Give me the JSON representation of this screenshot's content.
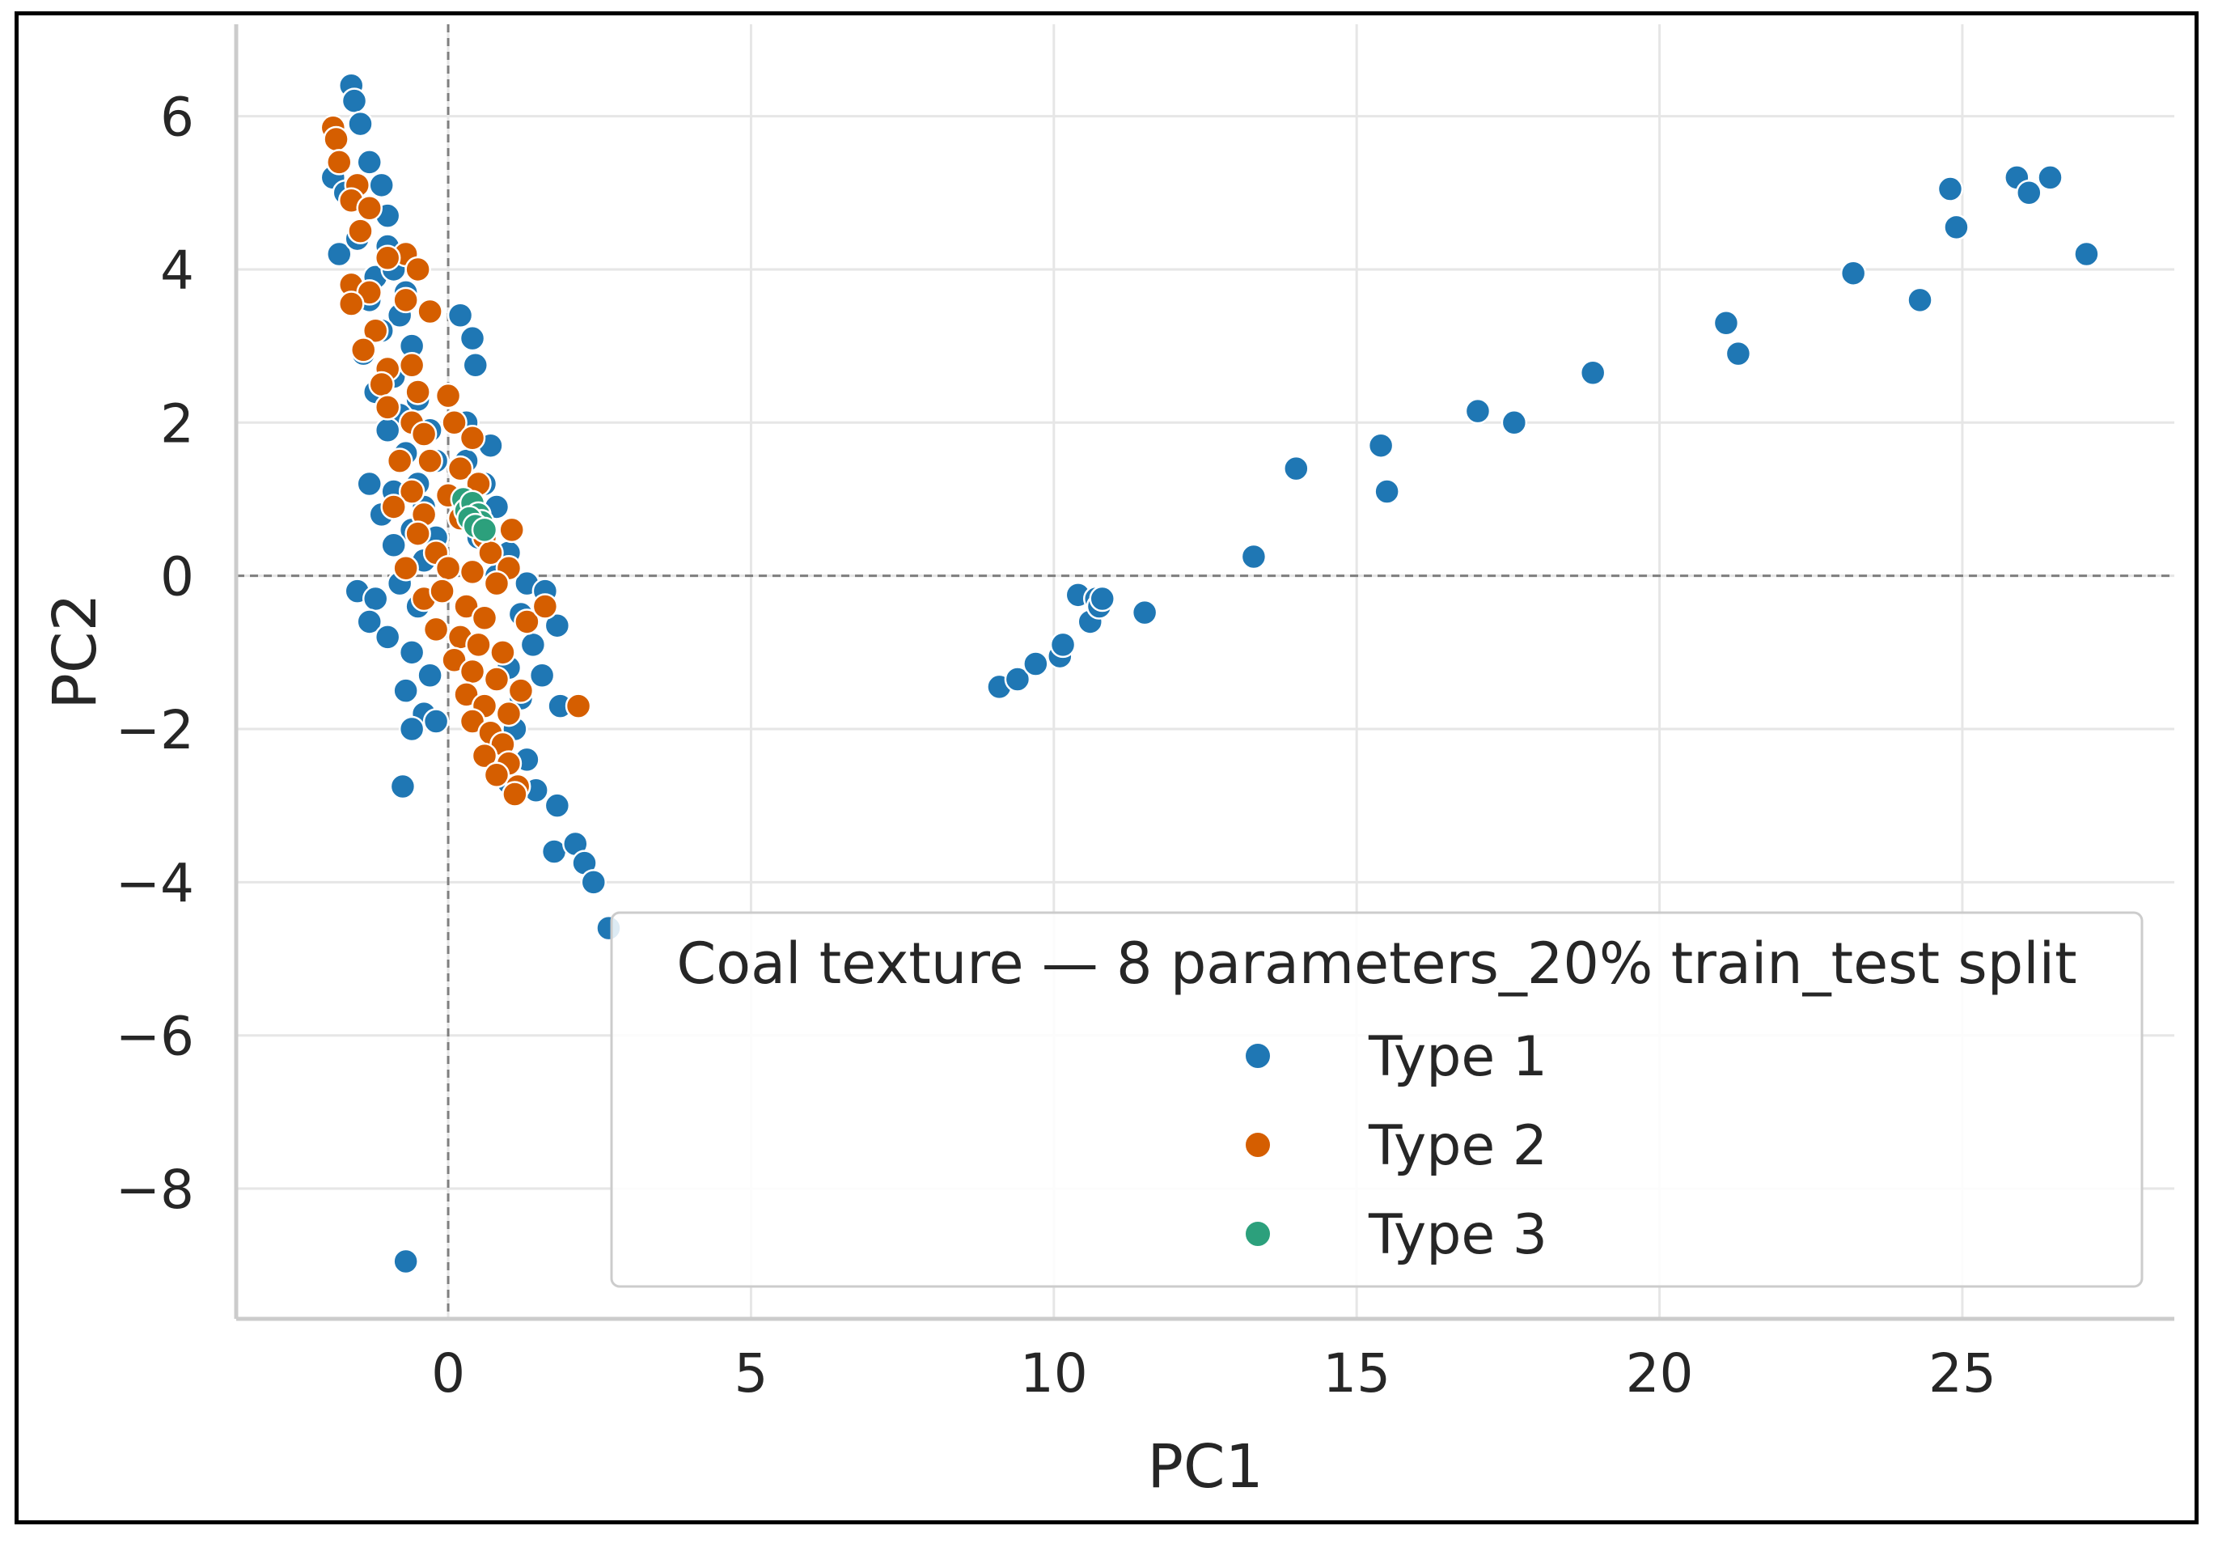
{
  "chart_data": {
    "type": "scatter",
    "xlabel": "PC1",
    "ylabel": "PC2",
    "xlim": [
      -3.5,
      28.5
    ],
    "ylim": [
      -9.7,
      7.2
    ],
    "xticks": [
      0,
      5,
      10,
      15,
      20,
      25
    ],
    "yticks": [
      6,
      4,
      2,
      0,
      -2,
      -4,
      -6,
      -8
    ],
    "xtick_labels": [
      "0",
      "5",
      "10",
      "15",
      "20",
      "25"
    ],
    "ytick_labels": [
      "6",
      "4",
      "2",
      "0",
      "−2",
      "−4",
      "−6",
      "−8"
    ],
    "grid": true,
    "reference_lines": {
      "x": 0,
      "y": 0,
      "style": "dashed"
    },
    "legend": {
      "title": "Coal texture — 8 parameters_20% train_test split",
      "position": "lower-right"
    },
    "series": [
      {
        "name": "Type 1",
        "color": "#1f77b4",
        "points": [
          [
            -1.6,
            6.4
          ],
          [
            -1.55,
            6.2
          ],
          [
            -1.45,
            5.9
          ],
          [
            -1.3,
            5.4
          ],
          [
            -1.9,
            5.2
          ],
          [
            -1.7,
            5.0
          ],
          [
            -1.1,
            5.1
          ],
          [
            -1.0,
            4.7
          ],
          [
            -1.8,
            4.2
          ],
          [
            -1.5,
            4.4
          ],
          [
            -1.0,
            4.3
          ],
          [
            -1.2,
            3.9
          ],
          [
            -0.9,
            4.0
          ],
          [
            -0.7,
            3.7
          ],
          [
            -1.3,
            3.6
          ],
          [
            -0.8,
            3.4
          ],
          [
            -1.1,
            3.2
          ],
          [
            -1.4,
            2.9
          ],
          [
            -0.6,
            3.0
          ],
          [
            -0.9,
            2.6
          ],
          [
            -1.2,
            2.4
          ],
          [
            -0.5,
            2.3
          ],
          [
            -0.8,
            2.1
          ],
          [
            -1.0,
            1.9
          ],
          [
            -0.3,
            1.9
          ],
          [
            -0.7,
            1.6
          ],
          [
            -0.2,
            1.5
          ],
          [
            -0.5,
            1.2
          ],
          [
            -1.3,
            1.2
          ],
          [
            -0.9,
            1.1
          ],
          [
            -0.4,
            0.9
          ],
          [
            -1.1,
            0.8
          ],
          [
            -0.6,
            0.6
          ],
          [
            -0.2,
            0.5
          ],
          [
            -0.9,
            0.4
          ],
          [
            -0.4,
            0.2
          ],
          [
            -1.5,
            -0.2
          ],
          [
            -1.2,
            -0.3
          ],
          [
            -0.8,
            -0.1
          ],
          [
            -0.5,
            -0.4
          ],
          [
            -1.3,
            -0.6
          ],
          [
            -1.0,
            -0.8
          ],
          [
            -0.6,
            -1.0
          ],
          [
            -0.3,
            -1.3
          ],
          [
            -0.7,
            -1.5
          ],
          [
            -0.4,
            -1.8
          ],
          [
            -0.6,
            -2.0
          ],
          [
            -0.2,
            -1.9
          ],
          [
            0.2,
            3.4
          ],
          [
            0.4,
            3.1
          ],
          [
            0.45,
            2.75
          ],
          [
            0.3,
            2.0
          ],
          [
            0.7,
            1.7
          ],
          [
            0.3,
            1.5
          ],
          [
            0.6,
            1.2
          ],
          [
            0.8,
            0.9
          ],
          [
            0.5,
            0.5
          ],
          [
            1.0,
            0.3
          ],
          [
            0.8,
            0.0
          ],
          [
            1.3,
            -0.1
          ],
          [
            1.6,
            -0.2
          ],
          [
            1.2,
            -0.5
          ],
          [
            1.8,
            -0.65
          ],
          [
            1.4,
            -0.9
          ],
          [
            1.0,
            -1.2
          ],
          [
            1.55,
            -1.3
          ],
          [
            1.2,
            -1.6
          ],
          [
            1.85,
            -1.7
          ],
          [
            1.1,
            -2.0
          ],
          [
            1.3,
            -2.4
          ],
          [
            1.0,
            -2.7
          ],
          [
            1.45,
            -2.8
          ],
          [
            1.8,
            -3.0
          ],
          [
            1.75,
            -3.6
          ],
          [
            2.1,
            -3.5
          ],
          [
            2.25,
            -3.75
          ],
          [
            2.4,
            -4.0
          ],
          [
            2.65,
            -4.6
          ],
          [
            -0.75,
            -2.75
          ],
          [
            -0.7,
            -8.95
          ],
          [
            9.1,
            -1.45
          ],
          [
            9.4,
            -1.35
          ],
          [
            9.7,
            -1.15
          ],
          [
            10.1,
            -1.05
          ],
          [
            10.15,
            -0.9
          ],
          [
            10.4,
            -0.25
          ],
          [
            10.6,
            -0.6
          ],
          [
            10.7,
            -0.3
          ],
          [
            10.75,
            -0.4
          ],
          [
            10.8,
            -0.3
          ],
          [
            11.5,
            -0.48
          ],
          [
            13.3,
            0.25
          ],
          [
            14.0,
            1.4
          ],
          [
            15.4,
            1.7
          ],
          [
            15.5,
            1.1
          ],
          [
            17.0,
            2.15
          ],
          [
            17.6,
            2.0
          ],
          [
            18.9,
            2.65
          ],
          [
            21.1,
            3.3
          ],
          [
            21.3,
            2.9
          ],
          [
            23.2,
            3.95
          ],
          [
            24.3,
            3.6
          ],
          [
            24.8,
            5.05
          ],
          [
            24.9,
            4.55
          ],
          [
            25.9,
            5.2
          ],
          [
            26.1,
            5.0
          ],
          [
            26.45,
            5.2
          ],
          [
            27.05,
            4.2
          ]
        ]
      },
      {
        "name": "Type 2",
        "color": "#d55e00",
        "points": [
          [
            -1.9,
            5.85
          ],
          [
            -1.85,
            5.7
          ],
          [
            -1.8,
            5.4
          ],
          [
            -1.5,
            5.1
          ],
          [
            -1.6,
            4.9
          ],
          [
            -1.3,
            4.8
          ],
          [
            -1.45,
            4.5
          ],
          [
            -0.7,
            4.2
          ],
          [
            -0.5,
            4.0
          ],
          [
            -1.0,
            4.15
          ],
          [
            -1.6,
            3.8
          ],
          [
            -1.3,
            3.7
          ],
          [
            -1.6,
            3.55
          ],
          [
            -0.3,
            3.45
          ],
          [
            -0.7,
            3.6
          ],
          [
            -1.2,
            3.2
          ],
          [
            -1.4,
            2.95
          ],
          [
            -1.0,
            2.7
          ],
          [
            -0.6,
            2.75
          ],
          [
            -1.1,
            2.5
          ],
          [
            -0.5,
            2.4
          ],
          [
            0.0,
            2.35
          ],
          [
            -1.0,
            2.2
          ],
          [
            -0.6,
            2.0
          ],
          [
            0.1,
            2.0
          ],
          [
            -0.4,
            1.85
          ],
          [
            0.4,
            1.8
          ],
          [
            -0.8,
            1.5
          ],
          [
            -0.3,
            1.5
          ],
          [
            0.2,
            1.4
          ],
          [
            0.5,
            1.2
          ],
          [
            -0.6,
            1.1
          ],
          [
            0.0,
            1.05
          ],
          [
            -0.9,
            0.9
          ],
          [
            -0.4,
            0.8
          ],
          [
            0.2,
            0.75
          ],
          [
            0.6,
            0.5
          ],
          [
            1.05,
            0.6
          ],
          [
            0.7,
            0.3
          ],
          [
            -0.5,
            0.55
          ],
          [
            -0.2,
            0.3
          ],
          [
            -0.7,
            0.1
          ],
          [
            0.0,
            0.1
          ],
          [
            0.4,
            0.05
          ],
          [
            1.0,
            0.1
          ],
          [
            0.8,
            -0.1
          ],
          [
            -0.4,
            -0.3
          ],
          [
            -0.1,
            -0.2
          ],
          [
            0.3,
            -0.4
          ],
          [
            0.6,
            -0.55
          ],
          [
            1.3,
            -0.6
          ],
          [
            1.6,
            -0.4
          ],
          [
            -0.2,
            -0.7
          ],
          [
            0.2,
            -0.8
          ],
          [
            0.5,
            -0.9
          ],
          [
            0.9,
            -1.0
          ],
          [
            0.1,
            -1.1
          ],
          [
            0.4,
            -1.25
          ],
          [
            0.8,
            -1.35
          ],
          [
            1.2,
            -1.5
          ],
          [
            0.3,
            -1.55
          ],
          [
            0.6,
            -1.7
          ],
          [
            1.0,
            -1.8
          ],
          [
            2.15,
            -1.7
          ],
          [
            0.4,
            -1.9
          ],
          [
            0.7,
            -2.05
          ],
          [
            0.9,
            -2.2
          ],
          [
            0.6,
            -2.35
          ],
          [
            1.0,
            -2.45
          ],
          [
            0.8,
            -2.6
          ],
          [
            1.15,
            -2.75
          ],
          [
            1.1,
            -2.85
          ]
        ]
      },
      {
        "name": "Type 3",
        "color": "#2ca07c",
        "points": [
          [
            0.25,
            1.0
          ],
          [
            0.3,
            0.85
          ],
          [
            0.4,
            0.95
          ],
          [
            0.5,
            0.8
          ],
          [
            0.55,
            0.7
          ],
          [
            0.35,
            0.75
          ],
          [
            0.45,
            0.65
          ],
          [
            0.6,
            0.6
          ]
        ]
      }
    ]
  }
}
